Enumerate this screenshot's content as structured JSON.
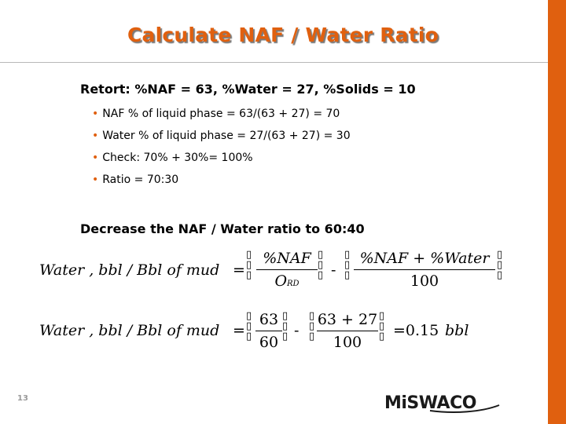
{
  "title": "Calculate NAF / Water Ratio",
  "retort_heading": "Retort: %NAF = 63, %Water = 27, %Solids = 10",
  "bullets": [
    "NAF % of liquid phase = 63/(63 + 27) = 70",
    "Water % of liquid phase = 27/(63 + 27) = 30",
    "Check: 70% + 30%= 100%",
    "Ratio = 70:30"
  ],
  "decrease_heading": "Decrease the NAF / Water ratio to 60:40",
  "eq1": {
    "lhs": "Water , bbl / Bbl of  mud",
    "equals": "=",
    "frac1_num": "%NAF",
    "frac1_den_main": "O",
    "frac1_den_sub": "RD",
    "minus": "-",
    "frac2_num": "%NAF  + %Water",
    "frac2_den": "100"
  },
  "eq2": {
    "lhs": "Water , bbl / Bbl of  mud",
    "equals": "=",
    "frac1_num": "63",
    "frac1_den": "60",
    "minus": "-",
    "frac2_num": "63 + 27",
    "frac2_den": "100",
    "result": "=0.15",
    "unit": "bbl"
  },
  "page_number": "13",
  "logo_text": "MiSWACO",
  "colors": {
    "accent": "#e0600f",
    "rule": "#b9b9b9",
    "logo": "#1a1a1a"
  }
}
